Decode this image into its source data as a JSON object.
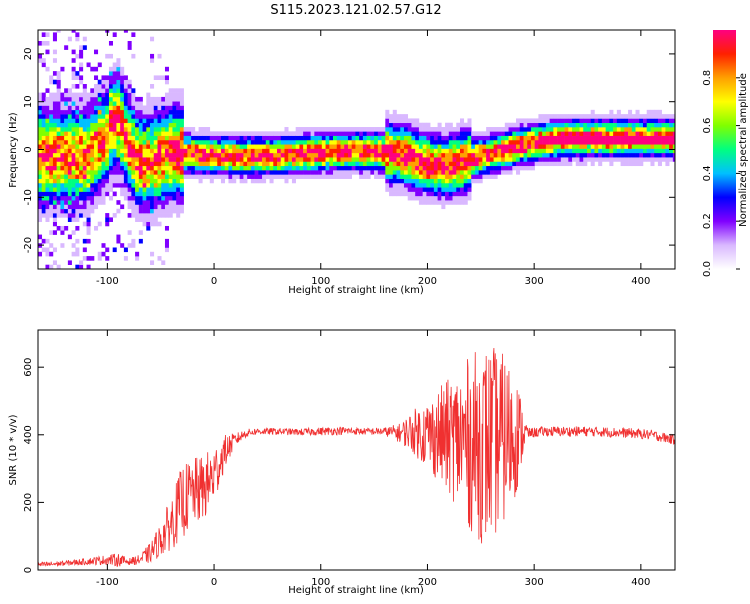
{
  "title": "S115.2023.121.02.57.G12",
  "colorbar": {
    "label": "Normalized spectral amplitude",
    "ticks": [
      0.0,
      0.2,
      0.4,
      0.6,
      0.8
    ],
    "tick_labels": [
      "0.0",
      "0.2",
      "0.4",
      "0.6",
      "0.8"
    ],
    "range": [
      0,
      1
    ],
    "colormap": [
      "#ffffff",
      "#d9b8ff",
      "#8000ff",
      "#0000ff",
      "#00c0ff",
      "#00ff80",
      "#80ff00",
      "#ffff00",
      "#ffa000",
      "#ff2000",
      "#ff0080"
    ]
  },
  "chart_data": [
    {
      "type": "heatmap",
      "xlabel": "Height of straight line (km)",
      "ylabel": "Frequency (Hz)",
      "xlim": [
        -165,
        432
      ],
      "ylim": [
        -25,
        25
      ],
      "xticks": [
        -100,
        0,
        100,
        200,
        300,
        400
      ],
      "xtick_labels": [
        "-100",
        "0",
        "100",
        "200",
        "300",
        "400"
      ],
      "yticks": [
        -20,
        -10,
        0,
        10,
        20
      ],
      "ytick_labels": [
        "-20",
        "-10",
        "0",
        "10",
        "20"
      ],
      "ridge": {
        "x": [
          -165,
          -140,
          -120,
          -110,
          -100,
          -95,
          -90,
          -85,
          -80,
          -75,
          -70,
          -65,
          -60,
          -55,
          -50,
          -45,
          -40,
          -35,
          -30,
          -20,
          0,
          20,
          40,
          60,
          80,
          100,
          120,
          140,
          160,
          175,
          185,
          195,
          205,
          215,
          225,
          235,
          250,
          265,
          280,
          295,
          310,
          325,
          350,
          380,
          410,
          432
        ],
        "y": [
          -1.5,
          -1.5,
          -1.3,
          0.5,
          3.0,
          5.5,
          6.0,
          4.0,
          1.0,
          -1.0,
          -2.5,
          -3.0,
          -2.8,
          -2.3,
          -1.8,
          -1.2,
          -0.8,
          -0.6,
          -0.7,
          -1.0,
          -1.2,
          -1.3,
          -1.4,
          -1.2,
          -1.0,
          -0.6,
          -0.4,
          -0.4,
          -0.6,
          -1.0,
          -1.8,
          -2.6,
          -3.2,
          -3.4,
          -3.2,
          -2.4,
          -1.4,
          -0.5,
          0.4,
          1.2,
          1.8,
          2.3,
          2.4,
          2.4,
          2.4,
          2.4
        ]
      }
    },
    {
      "type": "line",
      "xlabel": "Height of straight line (km)",
      "ylabel": "SNR (10 * v/v)",
      "xlim": [
        -165,
        432
      ],
      "ylim": [
        0,
        710
      ],
      "xticks": [
        -100,
        0,
        100,
        200,
        300,
        400
      ],
      "xtick_labels": [
        "-100",
        "0",
        "100",
        "200",
        "300",
        "400"
      ],
      "yticks": [
        0,
        200,
        400,
        600
      ],
      "ytick_labels": [
        "0",
        "200",
        "400",
        "600"
      ],
      "color": "#f03030",
      "series": [
        {
          "x": [
            -165,
            -140,
            -120,
            -100,
            -90,
            -80,
            -70,
            -60,
            -50,
            -40,
            -30,
            -20,
            -10,
            0,
            10,
            20,
            30,
            40,
            60,
            80,
            100,
            120,
            140,
            160,
            175,
            185,
            195,
            205,
            215,
            225,
            235,
            245,
            255,
            265,
            275,
            285,
            290,
            295,
            310,
            330,
            350,
            370,
            390,
            410,
            432
          ],
          "mean": [
            15,
            20,
            25,
            30,
            30,
            25,
            30,
            50,
            90,
            140,
            200,
            230,
            240,
            280,
            350,
            385,
            405,
            410,
            410,
            408,
            410,
            412,
            410,
            410,
            405,
            410,
            405,
            400,
            395,
            390,
            380,
            370,
            370,
            380,
            390,
            400,
            405,
            405,
            410,
            410,
            410,
            408,
            405,
            400,
            385
          ],
          "amp": [
            8,
            8,
            10,
            15,
            20,
            10,
            15,
            30,
            50,
            80,
            110,
            100,
            100,
            90,
            50,
            20,
            12,
            10,
            10,
            10,
            12,
            12,
            10,
            12,
            30,
            60,
            90,
            120,
            160,
            190,
            240,
            280,
            300,
            280,
            240,
            160,
            60,
            15,
            15,
            15,
            15,
            15,
            15,
            15,
            15
          ]
        }
      ]
    }
  ]
}
